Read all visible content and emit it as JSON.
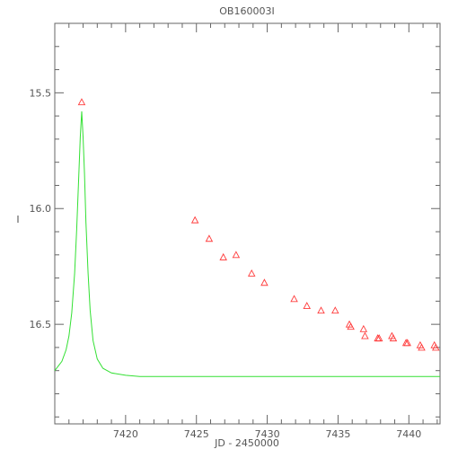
{
  "chart_data": {
    "type": "scatter",
    "title": "OB160003I",
    "xlabel": "JD - 2450000",
    "ylabel": "I",
    "xlim": [
      7415.0,
      7442.2
    ],
    "ylim": [
      16.93,
      15.2
    ],
    "y_inverted": true,
    "grid": false,
    "x_major_ticks": [
      7420,
      7425,
      7430,
      7435,
      7440
    ],
    "y_major_ticks": [
      15.5,
      16.0,
      16.5
    ],
    "x_tick_labels": [
      "7420",
      "7425",
      "7430",
      "7435",
      "7440"
    ],
    "y_tick_labels": [
      "15.5",
      "16.0",
      "16.5"
    ],
    "colors": {
      "data": "#ff3b3b",
      "model": "#33e033",
      "frame": "#666666",
      "text": "#555555"
    },
    "series": [
      {
        "kind": "points",
        "marker": "triangle-open",
        "x": [
          7416.9,
          7424.9,
          7425.9,
          7426.9,
          7427.8,
          7428.9,
          7429.8,
          7431.9,
          7432.8,
          7433.8,
          7434.8,
          7435.8,
          7435.9,
          7436.8,
          7436.9,
          7437.8,
          7437.9,
          7438.8,
          7438.9,
          7439.8,
          7439.9,
          7440.8,
          7440.9,
          7441.8,
          7441.9
        ],
        "y": [
          15.54,
          16.05,
          16.13,
          16.21,
          16.2,
          16.28,
          16.32,
          16.39,
          16.42,
          16.44,
          16.44,
          16.5,
          16.51,
          16.52,
          16.55,
          16.56,
          16.56,
          16.55,
          16.56,
          16.58,
          16.58,
          16.59,
          16.6,
          16.59,
          16.6
        ]
      },
      {
        "kind": "model",
        "style": "line",
        "x": [
          7415.0,
          7415.5,
          7415.8,
          7416.0,
          7416.2,
          7416.4,
          7416.55,
          7416.7,
          7416.8,
          7416.9,
          7417.0,
          7417.1,
          7417.2,
          7417.35,
          7417.5,
          7417.7,
          7418.0,
          7418.4,
          7419.0,
          7420.0,
          7421.0,
          7425.0,
          7430.0,
          7435.0,
          7442.2
        ],
        "y": [
          16.7,
          16.66,
          16.61,
          16.55,
          16.45,
          16.28,
          16.09,
          15.85,
          15.69,
          15.58,
          15.69,
          15.85,
          16.06,
          16.28,
          16.44,
          16.57,
          16.65,
          16.69,
          16.71,
          16.72,
          16.725,
          16.725,
          16.725,
          16.725,
          16.725
        ]
      }
    ]
  }
}
